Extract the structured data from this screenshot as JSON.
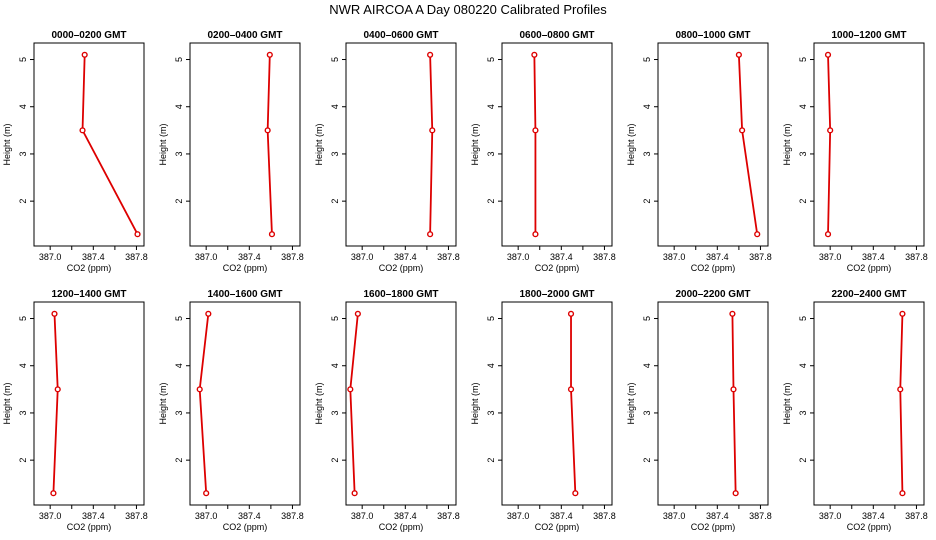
{
  "title": "NWR AIRCOA A  Day 080220  Calibrated Profiles",
  "colors": {
    "line": "#dd0000",
    "axis": "#000000"
  },
  "chart_data": [
    {
      "type": "line",
      "title": "0000–0200 GMT",
      "xlabel": "CO2 (ppm)",
      "ylabel": "Height (m)",
      "xlim": [
        386.85,
        387.87
      ],
      "ylim": [
        1.05,
        5.35
      ],
      "xticks": [
        "387.0",
        "387.4",
        "387.8"
      ],
      "yticks": [
        "2",
        "3",
        "4",
        "5"
      ],
      "series": [
        {
          "x": [
            387.81,
            387.3,
            387.32
          ],
          "y": [
            1.3,
            3.5,
            5.1
          ]
        }
      ]
    },
    {
      "type": "line",
      "title": "0200–0400 GMT",
      "xlabel": "CO2 (ppm)",
      "ylabel": "Height (m)",
      "xlim": [
        386.85,
        387.87
      ],
      "ylim": [
        1.05,
        5.35
      ],
      "xticks": [
        "387.0",
        "387.4",
        "387.8"
      ],
      "yticks": [
        "2",
        "3",
        "4",
        "5"
      ],
      "series": [
        {
          "x": [
            387.61,
            387.57,
            387.59
          ],
          "y": [
            1.3,
            3.5,
            5.1
          ]
        }
      ]
    },
    {
      "type": "line",
      "title": "0400–0600 GMT",
      "xlabel": "CO2 (ppm)",
      "ylabel": "Height (m)",
      "xlim": [
        386.85,
        387.87
      ],
      "ylim": [
        1.05,
        5.35
      ],
      "xticks": [
        "387.0",
        "387.4",
        "387.8"
      ],
      "yticks": [
        "2",
        "3",
        "4",
        "5"
      ],
      "series": [
        {
          "x": [
            387.63,
            387.65,
            387.63
          ],
          "y": [
            1.3,
            3.5,
            5.1
          ]
        }
      ]
    },
    {
      "type": "line",
      "title": "0600–0800 GMT",
      "xlabel": "CO2 (ppm)",
      "ylabel": "Height (m)",
      "xlim": [
        386.85,
        387.87
      ],
      "ylim": [
        1.05,
        5.35
      ],
      "xticks": [
        "387.0",
        "387.4",
        "387.8"
      ],
      "yticks": [
        "2",
        "3",
        "4",
        "5"
      ],
      "series": [
        {
          "x": [
            387.16,
            387.16,
            387.15
          ],
          "y": [
            1.3,
            3.5,
            5.1
          ]
        }
      ]
    },
    {
      "type": "line",
      "title": "0800–1000 GMT",
      "xlabel": "CO2 (ppm)",
      "ylabel": "Height (m)",
      "xlim": [
        386.85,
        387.87
      ],
      "ylim": [
        1.05,
        5.35
      ],
      "xticks": [
        "387.0",
        "387.4",
        "387.8"
      ],
      "yticks": [
        "2",
        "3",
        "4",
        "5"
      ],
      "series": [
        {
          "x": [
            387.77,
            387.63,
            387.6
          ],
          "y": [
            1.3,
            3.5,
            5.1
          ]
        }
      ]
    },
    {
      "type": "line",
      "title": "1000–1200 GMT",
      "xlabel": "CO2 (ppm)",
      "ylabel": "Height (m)",
      "xlim": [
        386.85,
        387.87
      ],
      "ylim": [
        1.05,
        5.35
      ],
      "xticks": [
        "387.0",
        "387.4",
        "387.8"
      ],
      "yticks": [
        "2",
        "3",
        "4",
        "5"
      ],
      "series": [
        {
          "x": [
            386.98,
            387.0,
            386.98
          ],
          "y": [
            1.3,
            3.5,
            5.1
          ]
        }
      ]
    },
    {
      "type": "line",
      "title": "1200–1400 GMT",
      "xlabel": "CO2 (ppm)",
      "ylabel": "Height (m)",
      "xlim": [
        386.85,
        387.87
      ],
      "ylim": [
        1.05,
        5.35
      ],
      "xticks": [
        "387.0",
        "387.4",
        "387.8"
      ],
      "yticks": [
        "2",
        "3",
        "4",
        "5"
      ],
      "series": [
        {
          "x": [
            387.03,
            387.07,
            387.04
          ],
          "y": [
            1.3,
            3.5,
            5.1
          ]
        }
      ]
    },
    {
      "type": "line",
      "title": "1400–1600 GMT",
      "xlabel": "CO2 (ppm)",
      "ylabel": "Height (m)",
      "xlim": [
        386.85,
        387.87
      ],
      "ylim": [
        1.05,
        5.35
      ],
      "xticks": [
        "387.0",
        "387.4",
        "387.8"
      ],
      "yticks": [
        "2",
        "3",
        "4",
        "5"
      ],
      "series": [
        {
          "x": [
            387.0,
            386.94,
            387.02
          ],
          "y": [
            1.3,
            3.5,
            5.1
          ]
        }
      ]
    },
    {
      "type": "line",
      "title": "1600–1800 GMT",
      "xlabel": "CO2 (ppm)",
      "ylabel": "Height (m)",
      "xlim": [
        386.85,
        387.87
      ],
      "ylim": [
        1.05,
        5.35
      ],
      "xticks": [
        "387.0",
        "387.4",
        "387.8"
      ],
      "yticks": [
        "2",
        "3",
        "4",
        "5"
      ],
      "series": [
        {
          "x": [
            386.93,
            386.89,
            386.96
          ],
          "y": [
            1.3,
            3.5,
            5.1
          ]
        }
      ]
    },
    {
      "type": "line",
      "title": "1800–2000 GMT",
      "xlabel": "CO2 (ppm)",
      "ylabel": "Height (m)",
      "xlim": [
        386.85,
        387.87
      ],
      "ylim": [
        1.05,
        5.35
      ],
      "xticks": [
        "387.0",
        "387.4",
        "387.8"
      ],
      "yticks": [
        "2",
        "3",
        "4",
        "5"
      ],
      "series": [
        {
          "x": [
            387.53,
            387.49,
            387.49
          ],
          "y": [
            1.3,
            3.5,
            5.1
          ]
        }
      ]
    },
    {
      "type": "line",
      "title": "2000–2200 GMT",
      "xlabel": "CO2 (ppm)",
      "ylabel": "Height (m)",
      "xlim": [
        386.85,
        387.87
      ],
      "ylim": [
        1.05,
        5.35
      ],
      "xticks": [
        "387.0",
        "387.4",
        "387.8"
      ],
      "yticks": [
        "2",
        "3",
        "4",
        "5"
      ],
      "series": [
        {
          "x": [
            387.57,
            387.55,
            387.54
          ],
          "y": [
            1.3,
            3.5,
            5.1
          ]
        }
      ]
    },
    {
      "type": "line",
      "title": "2200–2400 GMT",
      "xlabel": "CO2 (ppm)",
      "ylabel": "Height (m)",
      "xlim": [
        386.85,
        387.87
      ],
      "ylim": [
        1.05,
        5.35
      ],
      "xticks": [
        "387.0",
        "387.4",
        "387.8"
      ],
      "yticks": [
        "2",
        "3",
        "4",
        "5"
      ],
      "series": [
        {
          "x": [
            387.67,
            387.65,
            387.67
          ],
          "y": [
            1.3,
            3.5,
            5.1
          ]
        }
      ]
    }
  ]
}
